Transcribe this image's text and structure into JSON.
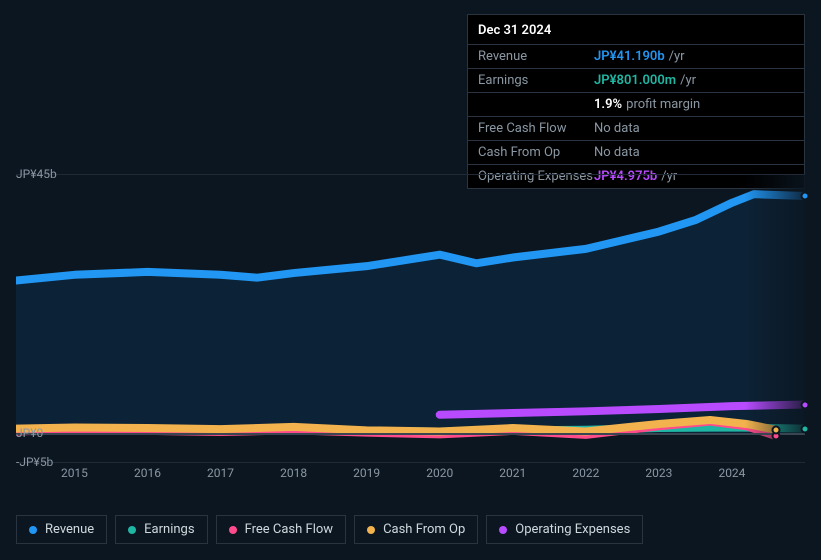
{
  "tooltip": {
    "date": "Dec 31 2024",
    "rows": [
      {
        "label": "Revenue",
        "value": "JP¥41.190b",
        "color": "blue",
        "suffix": "/yr"
      },
      {
        "label": "Earnings",
        "value": "JP¥801.000m",
        "color": "teal",
        "suffix": "/yr"
      },
      {
        "label": "",
        "value": "1.9%",
        "color": "white",
        "suffix": "profit margin"
      },
      {
        "label": "Free Cash Flow",
        "value": "No data",
        "color": "dim",
        "suffix": ""
      },
      {
        "label": "Cash From Op",
        "value": "No data",
        "color": "dim",
        "suffix": ""
      },
      {
        "label": "Operating Expenses",
        "value": "JP¥4.975b",
        "color": "purple",
        "suffix": "/yr"
      }
    ]
  },
  "chart": {
    "type": "line",
    "background_color": "#0b1621",
    "grid_color": "#1f2a36",
    "baseline_color": "#3a4552",
    "y_ticks": [
      {
        "label": "JP¥45b",
        "value": 45
      },
      {
        "label": "JP¥0",
        "value": 0
      },
      {
        "label": "-JP¥5b",
        "value": -5
      }
    ],
    "ylim": [
      -5,
      45
    ],
    "x_years": [
      2015,
      2016,
      2017,
      2018,
      2019,
      2020,
      2021,
      2022,
      2023,
      2024
    ],
    "x_range": [
      2014.2,
      2025.0
    ],
    "label_fontsize": 12,
    "line_width": 2,
    "series": [
      {
        "name": "Revenue",
        "color": "#2196f3",
        "data": [
          [
            2014.2,
            26.5
          ],
          [
            2015,
            27.5
          ],
          [
            2016,
            28
          ],
          [
            2017,
            27.5
          ],
          [
            2017.5,
            27
          ],
          [
            2018,
            27.8
          ],
          [
            2019,
            29
          ],
          [
            2019.5,
            30
          ],
          [
            2020,
            31
          ],
          [
            2020.5,
            29.5
          ],
          [
            2021,
            30.5
          ],
          [
            2022,
            32
          ],
          [
            2022.5,
            33.5
          ],
          [
            2023,
            35
          ],
          [
            2023.5,
            37
          ],
          [
            2024,
            40
          ],
          [
            2024.3,
            41.5
          ],
          [
            2025,
            41.19
          ]
        ]
      },
      {
        "name": "Earnings",
        "color": "#1fb6a4",
        "data": [
          [
            2014.2,
            0.6
          ],
          [
            2015,
            0.5
          ],
          [
            2016,
            0.4
          ],
          [
            2017,
            0.5
          ],
          [
            2018,
            0.6
          ],
          [
            2019,
            0.4
          ],
          [
            2020,
            0.3
          ],
          [
            2021,
            0.5
          ],
          [
            2022,
            0.6
          ],
          [
            2023,
            0.9
          ],
          [
            2024,
            1.0
          ],
          [
            2025,
            0.801
          ]
        ]
      },
      {
        "name": "Free Cash Flow",
        "color": "#ff4b8b",
        "data": [
          [
            2014.2,
            0.3
          ],
          [
            2015,
            0.6
          ],
          [
            2016,
            0.4
          ],
          [
            2017,
            0.2
          ],
          [
            2018,
            0.5
          ],
          [
            2019,
            0.1
          ],
          [
            2020,
            -0.2
          ],
          [
            2021,
            0.4
          ],
          [
            2022,
            -0.3
          ],
          [
            2023,
            1.2
          ],
          [
            2023.7,
            2.0
          ],
          [
            2024.2,
            1.2
          ],
          [
            2024.6,
            -0.5
          ]
        ]
      },
      {
        "name": "Cash From Op",
        "color": "#f2b24d",
        "data": [
          [
            2014.2,
            0.8
          ],
          [
            2015,
            1.0
          ],
          [
            2016,
            0.9
          ],
          [
            2017,
            0.7
          ],
          [
            2018,
            1.1
          ],
          [
            2019,
            0.5
          ],
          [
            2020,
            0.3
          ],
          [
            2021,
            0.9
          ],
          [
            2022,
            0.3
          ],
          [
            2023,
            1.6
          ],
          [
            2023.7,
            2.3
          ],
          [
            2024.2,
            1.6
          ],
          [
            2024.6,
            0.6
          ]
        ]
      },
      {
        "name": "Operating Expenses",
        "color": "#b84bff",
        "data": [
          [
            2020,
            3.2
          ],
          [
            2021,
            3.5
          ],
          [
            2022,
            3.8
          ],
          [
            2023,
            4.2
          ],
          [
            2024,
            4.7
          ],
          [
            2025,
            4.975
          ]
        ]
      }
    ]
  },
  "legend": {
    "items": [
      {
        "label": "Revenue",
        "color": "#2196f3"
      },
      {
        "label": "Earnings",
        "color": "#1fb6a4"
      },
      {
        "label": "Free Cash Flow",
        "color": "#ff4b8b"
      },
      {
        "label": "Cash From Op",
        "color": "#f2b24d"
      },
      {
        "label": "Operating Expenses",
        "color": "#b84bff"
      }
    ]
  }
}
